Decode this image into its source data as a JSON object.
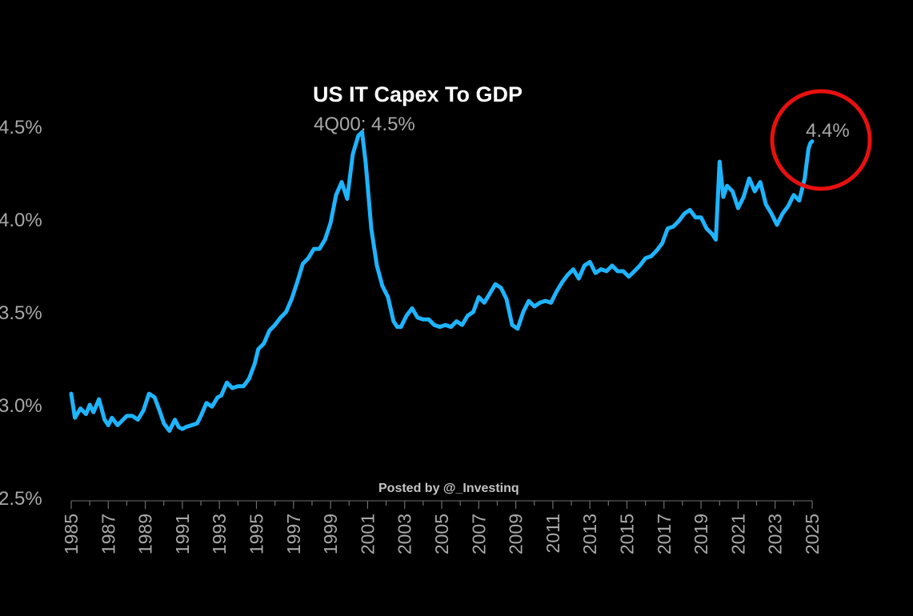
{
  "chart_data": {
    "type": "line",
    "title": "US IT Capex To GDP",
    "xlabel": "",
    "ylabel": "",
    "xlim": [
      1985,
      2025
    ],
    "ylim": [
      2.5,
      4.6
    ],
    "y_ticks": [
      "2.5%",
      "3.0%",
      "3.5%",
      "4.0%",
      "4.5%"
    ],
    "y_tick_values": [
      2.5,
      3.0,
      3.5,
      4.0,
      4.5
    ],
    "x_ticks": [
      "1985",
      "1987",
      "1989",
      "1991",
      "1993",
      "1995",
      "1997",
      "1999",
      "2001",
      "2003",
      "2005",
      "2007",
      "2009",
      "2011",
      "2013",
      "2015",
      "2017",
      "2019",
      "2021",
      "2023",
      "2025"
    ],
    "x_tick_values": [
      1985,
      1987,
      1989,
      1991,
      1993,
      1995,
      1997,
      1999,
      2001,
      2003,
      2005,
      2007,
      2009,
      2011,
      2013,
      2015,
      2017,
      2019,
      2021,
      2023,
      2025
    ],
    "series": [
      {
        "name": "US IT Capex To GDP",
        "color": "#1eb4ff",
        "x": [
          1985.0,
          1985.2,
          1985.5,
          1985.8,
          1986.0,
          1986.2,
          1986.5,
          1986.8,
          1987.0,
          1987.2,
          1987.5,
          1987.8,
          1988.0,
          1988.3,
          1988.6,
          1988.9,
          1989.2,
          1989.5,
          1989.8,
          1990.0,
          1990.3,
          1990.6,
          1990.8,
          1991.0,
          1991.2,
          1991.5,
          1991.8,
          1992.0,
          1992.3,
          1992.6,
          1992.9,
          1993.1,
          1993.4,
          1993.7,
          1994.0,
          1994.3,
          1994.6,
          1994.9,
          1995.1,
          1995.4,
          1995.7,
          1996.0,
          1996.3,
          1996.6,
          1996.9,
          1997.2,
          1997.5,
          1997.8,
          1998.1,
          1998.4,
          1998.7,
          1999.0,
          1999.3,
          1999.6,
          1999.9,
          2000.2,
          2000.5,
          2000.7,
          2000.9,
          2001.2,
          2001.5,
          2001.8,
          2002.1,
          2002.4,
          2002.6,
          2002.8,
          2003.1,
          2003.4,
          2003.7,
          2004.0,
          2004.3,
          2004.6,
          2004.9,
          2005.2,
          2005.5,
          2005.8,
          2006.1,
          2006.4,
          2006.7,
          2007.0,
          2007.3,
          2007.6,
          2007.9,
          2008.2,
          2008.5,
          2008.8,
          2009.1,
          2009.4,
          2009.7,
          2010.0,
          2010.3,
          2010.6,
          2010.9,
          2011.2,
          2011.5,
          2011.8,
          2012.1,
          2012.4,
          2012.7,
          2013.0,
          2013.3,
          2013.6,
          2013.9,
          2014.2,
          2014.5,
          2014.8,
          2015.1,
          2015.4,
          2015.7,
          2016.0,
          2016.3,
          2016.6,
          2016.9,
          2017.2,
          2017.5,
          2017.8,
          2018.1,
          2018.4,
          2018.7,
          2019.0,
          2019.3,
          2019.6,
          2019.8,
          2020.0,
          2020.2,
          2020.4,
          2020.7,
          2021.0,
          2021.3,
          2021.6,
          2021.9,
          2022.2,
          2022.5,
          2022.8,
          2023.1,
          2023.4,
          2023.7,
          2024.0,
          2024.3,
          2024.6,
          2024.8,
          2024.9,
          2025.0
        ],
        "values": [
          3.06,
          2.93,
          2.98,
          2.95,
          3.0,
          2.96,
          3.03,
          2.92,
          2.89,
          2.93,
          2.89,
          2.92,
          2.94,
          2.94,
          2.92,
          2.97,
          3.06,
          3.04,
          2.96,
          2.9,
          2.86,
          2.92,
          2.88,
          2.87,
          2.88,
          2.89,
          2.9,
          2.94,
          3.01,
          2.99,
          3.04,
          3.05,
          3.12,
          3.09,
          3.1,
          3.1,
          3.14,
          3.22,
          3.3,
          3.33,
          3.4,
          3.43,
          3.47,
          3.5,
          3.57,
          3.66,
          3.76,
          3.79,
          3.84,
          3.84,
          3.89,
          3.98,
          4.13,
          4.2,
          4.11,
          4.35,
          4.45,
          4.47,
          4.3,
          3.95,
          3.75,
          3.64,
          3.58,
          3.45,
          3.42,
          3.42,
          3.48,
          3.52,
          3.47,
          3.46,
          3.46,
          3.43,
          3.42,
          3.43,
          3.42,
          3.45,
          3.43,
          3.48,
          3.5,
          3.58,
          3.55,
          3.6,
          3.65,
          3.63,
          3.57,
          3.43,
          3.41,
          3.5,
          3.56,
          3.53,
          3.55,
          3.56,
          3.55,
          3.61,
          3.66,
          3.7,
          3.73,
          3.68,
          3.75,
          3.77,
          3.71,
          3.73,
          3.72,
          3.75,
          3.72,
          3.72,
          3.69,
          3.72,
          3.75,
          3.79,
          3.8,
          3.83,
          3.87,
          3.95,
          3.96,
          3.99,
          4.03,
          4.05,
          4.01,
          4.01,
          3.95,
          3.92,
          3.89,
          4.31,
          4.12,
          4.18,
          4.15,
          4.06,
          4.12,
          4.22,
          4.15,
          4.2,
          4.08,
          4.03,
          3.97,
          4.03,
          4.07,
          4.13,
          4.1,
          4.22,
          4.38,
          4.41,
          4.42
        ]
      }
    ],
    "annotations": [
      {
        "text": "4Q00: 4.5%",
        "x": 2000.6,
        "y": 4.47
      },
      {
        "text": "4.4%",
        "x": 2025.0,
        "y": 4.42
      }
    ],
    "highlight": {
      "shape": "circle",
      "color": "#e8100f",
      "x": 2025.0,
      "y": 4.38
    },
    "grid": false,
    "legend": "none"
  },
  "watermark": "Posted by @_Investinq",
  "colors": {
    "background": "#000000",
    "line": "#1eb4ff",
    "text": "#a8a8a8",
    "title": "#ffffff",
    "circle": "#e8100f"
  }
}
